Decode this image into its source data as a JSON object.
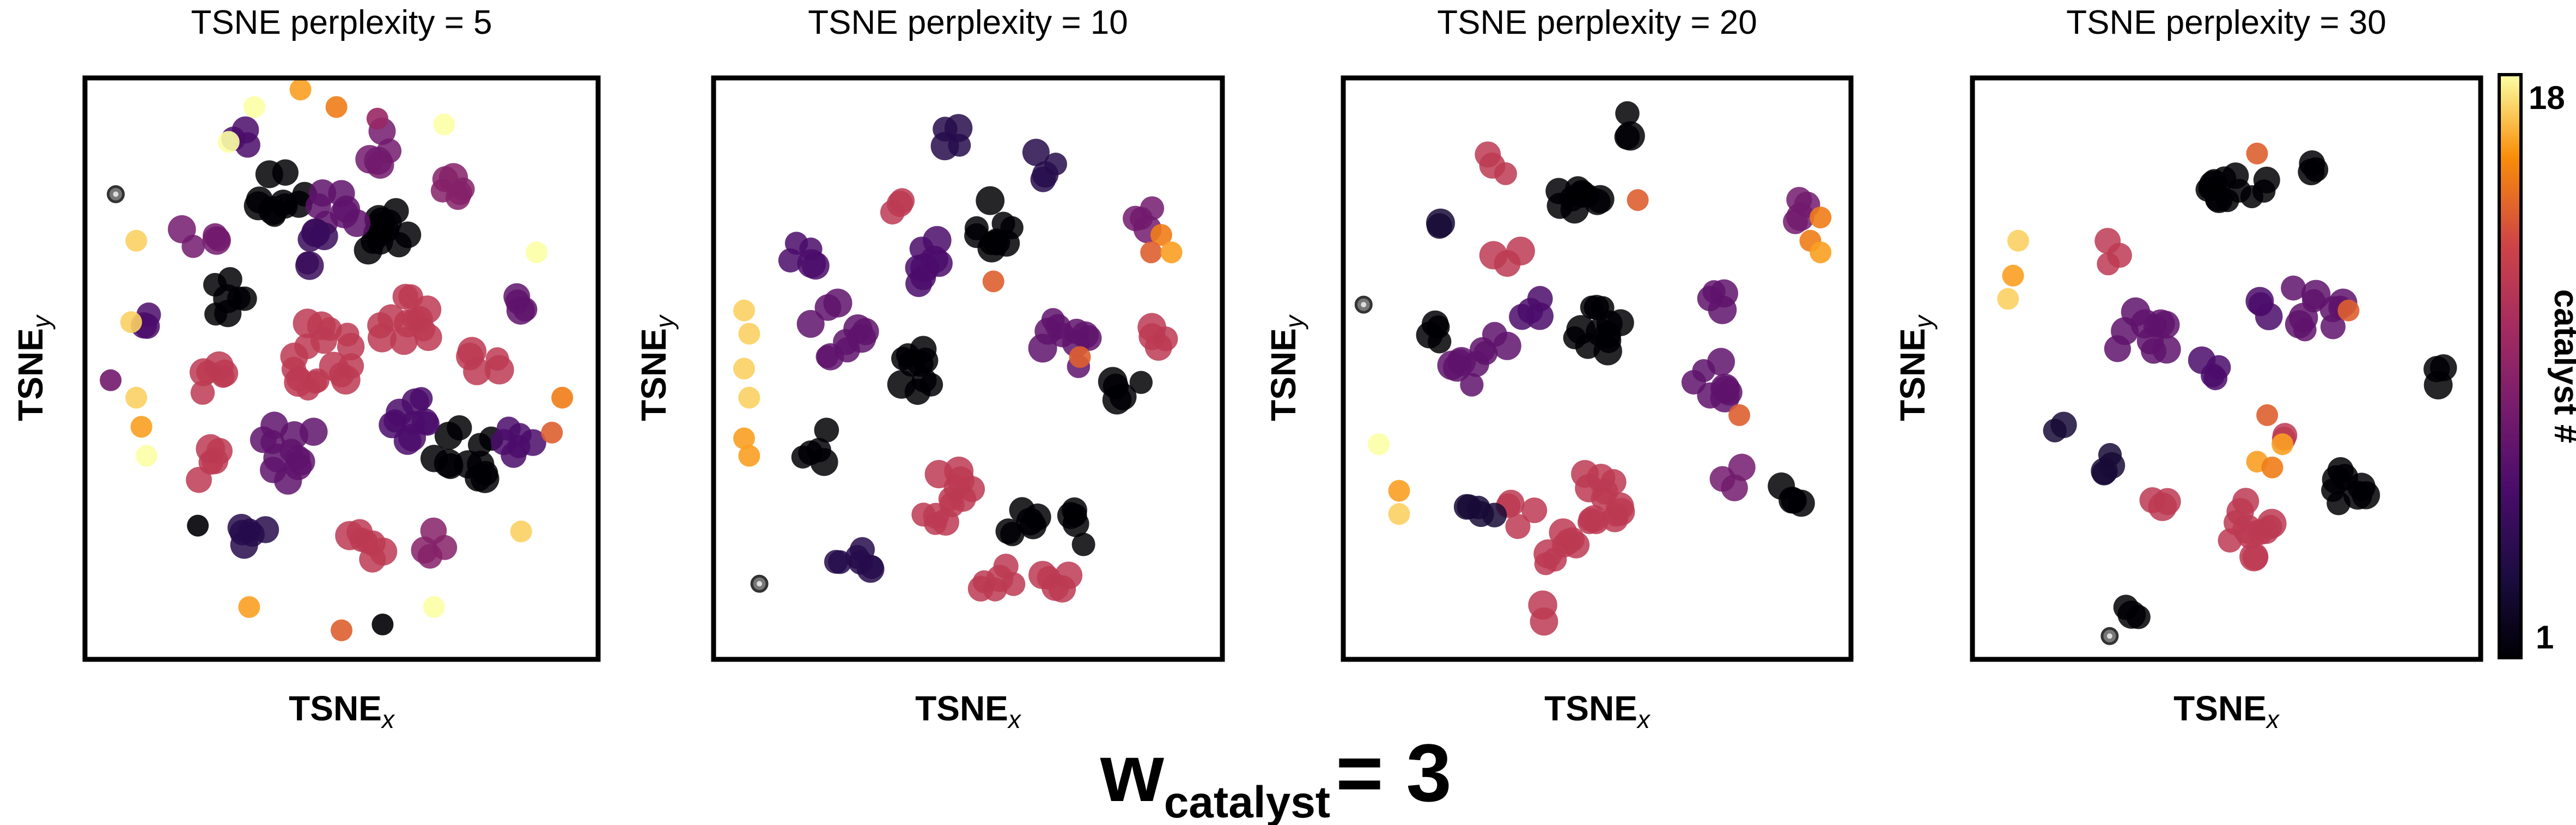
{
  "chart_data": {
    "suptitle": {
      "main": "w",
      "sub": "catalyst",
      "suffix": "= 3"
    },
    "colorbar": {
      "label": "catalyst #",
      "min": 1,
      "max": 18,
      "tick_labels": [
        "18",
        "1"
      ],
      "colormap": "inferno"
    },
    "colors": {
      "axes_frame": "#000000",
      "outlier_gray": "#777777"
    },
    "panels": [
      {
        "type": "scatter",
        "title": "TSNE perplexity = 5",
        "xlabel": "TSNE",
        "xlabel_sub": "x",
        "ylabel": "TSNE",
        "ylabel_sub": "y",
        "xlim": [
          0,
          100
        ],
        "ylim": [
          0,
          100
        ],
        "clusters": [
          {
            "x": 38,
            "y": 80,
            "c": 1,
            "n": 10,
            "s": 5
          },
          {
            "x": 60,
            "y": 72,
            "c": 1,
            "n": 12,
            "s": 6
          },
          {
            "x": 73,
            "y": 35,
            "c": 1,
            "n": 12,
            "s": 7
          },
          {
            "x": 28,
            "y": 62,
            "c": 1,
            "n": 7,
            "s": 4
          },
          {
            "x": 46,
            "y": 52,
            "c": 12,
            "n": 18,
            "s": 7
          },
          {
            "x": 62,
            "y": 58,
            "c": 12,
            "n": 12,
            "s": 6
          },
          {
            "x": 26,
            "y": 48,
            "c": 12,
            "n": 6,
            "s": 4
          },
          {
            "x": 24,
            "y": 33,
            "c": 12,
            "n": 5,
            "s": 4
          },
          {
            "x": 55,
            "y": 20,
            "c": 12,
            "n": 7,
            "s": 4
          },
          {
            "x": 78,
            "y": 52,
            "c": 12,
            "n": 5,
            "s": 4
          },
          {
            "x": 40,
            "y": 36,
            "c": 7,
            "n": 12,
            "s": 6
          },
          {
            "x": 62,
            "y": 42,
            "c": 6,
            "n": 10,
            "s": 6
          },
          {
            "x": 50,
            "y": 78,
            "c": 7,
            "n": 7,
            "s": 5
          },
          {
            "x": 70,
            "y": 82,
            "c": 9,
            "n": 6,
            "s": 4
          },
          {
            "x": 34,
            "y": 22,
            "c": 4,
            "n": 6,
            "s": 4
          },
          {
            "x": 84,
            "y": 38,
            "c": 6,
            "n": 6,
            "s": 4
          },
          {
            "x": 22,
            "y": 72,
            "c": 8,
            "n": 5,
            "s": 4
          },
          {
            "x": 45,
            "y": 70,
            "c": 5,
            "n": 6,
            "s": 4
          },
          {
            "x": 56,
            "y": 88,
            "c": 8,
            "n": 5,
            "s": 4
          },
          {
            "x": 84,
            "y": 62,
            "c": 7,
            "n": 4,
            "s": 3
          },
          {
            "x": 14,
            "y": 58,
            "c": 6,
            "n": 3,
            "s": 3
          },
          {
            "x": 68,
            "y": 20,
            "c": 9,
            "n": 4,
            "s": 3
          },
          {
            "x": 30,
            "y": 90,
            "c": 6,
            "n": 3,
            "s": 3
          }
        ],
        "points": [
          {
            "x": 42,
            "y": 98,
            "c": 16
          },
          {
            "x": 49,
            "y": 95,
            "c": 15
          },
          {
            "x": 33,
            "y": 95,
            "c": 18
          },
          {
            "x": 28,
            "y": 89,
            "c": 18
          },
          {
            "x": 57,
            "y": 93,
            "c": 10
          },
          {
            "x": 70,
            "y": 92,
            "c": 18
          },
          {
            "x": 10,
            "y": 72,
            "c": 17
          },
          {
            "x": 88,
            "y": 70,
            "c": 18
          },
          {
            "x": 9,
            "y": 58,
            "c": 17
          },
          {
            "x": 10,
            "y": 45,
            "c": 17
          },
          {
            "x": 11,
            "y": 40,
            "c": 16
          },
          {
            "x": 12,
            "y": 35,
            "c": 18
          },
          {
            "x": 93,
            "y": 45,
            "c": 15
          },
          {
            "x": 91,
            "y": 39,
            "c": 14
          },
          {
            "x": 5,
            "y": 48,
            "c": 8
          },
          {
            "x": 32,
            "y": 9,
            "c": 16
          },
          {
            "x": 50,
            "y": 5,
            "c": 14
          },
          {
            "x": 58,
            "y": 6,
            "c": 1
          },
          {
            "x": 68,
            "y": 9,
            "c": 18
          },
          {
            "x": 85,
            "y": 22,
            "c": 17
          },
          {
            "x": 22,
            "y": 23,
            "c": 1
          },
          {
            "x": 6,
            "y": 80,
            "c": 0,
            "ring": true
          }
        ]
      },
      {
        "type": "scatter",
        "title": "TSNE perplexity = 10",
        "xlabel": "TSNE",
        "xlabel_sub": "x",
        "ylabel": "TSNE",
        "ylabel_sub": "y",
        "xlim": [
          0,
          100
        ],
        "ylim": [
          0,
          100
        ],
        "clusters": [
          {
            "x": 40,
            "y": 50,
            "c": 1,
            "n": 10,
            "s": 5
          },
          {
            "x": 56,
            "y": 75,
            "c": 1,
            "n": 10,
            "s": 5
          },
          {
            "x": 60,
            "y": 24,
            "c": 1,
            "n": 6,
            "s": 4
          },
          {
            "x": 72,
            "y": 23,
            "c": 1,
            "n": 5,
            "s": 4
          },
          {
            "x": 82,
            "y": 47,
            "c": 1,
            "n": 5,
            "s": 4
          },
          {
            "x": 20,
            "y": 37,
            "c": 1,
            "n": 5,
            "s": 4
          },
          {
            "x": 45,
            "y": 28,
            "c": 12,
            "n": 12,
            "s": 6
          },
          {
            "x": 56,
            "y": 13,
            "c": 12,
            "n": 6,
            "s": 4
          },
          {
            "x": 66,
            "y": 14,
            "c": 12,
            "n": 5,
            "s": 4
          },
          {
            "x": 36,
            "y": 78,
            "c": 12,
            "n": 3,
            "s": 3
          },
          {
            "x": 88,
            "y": 56,
            "c": 12,
            "n": 4,
            "s": 3
          },
          {
            "x": 24,
            "y": 56,
            "c": 7,
            "n": 10,
            "s": 6
          },
          {
            "x": 70,
            "y": 55,
            "c": 7,
            "n": 10,
            "s": 6
          },
          {
            "x": 42,
            "y": 68,
            "c": 6,
            "n": 8,
            "s": 5
          },
          {
            "x": 28,
            "y": 17,
            "c": 4,
            "n": 7,
            "s": 4
          },
          {
            "x": 47,
            "y": 90,
            "c": 4,
            "n": 4,
            "s": 3
          },
          {
            "x": 65,
            "y": 85,
            "c": 4,
            "n": 4,
            "s": 3
          },
          {
            "x": 85,
            "y": 76,
            "c": 8,
            "n": 4,
            "s": 3
          },
          {
            "x": 18,
            "y": 70,
            "c": 6,
            "n": 5,
            "s": 4
          }
        ],
        "points": [
          {
            "x": 6,
            "y": 60,
            "c": 17
          },
          {
            "x": 7,
            "y": 56,
            "c": 17
          },
          {
            "x": 6,
            "y": 50,
            "c": 17
          },
          {
            "x": 7,
            "y": 45,
            "c": 17
          },
          {
            "x": 6,
            "y": 38,
            "c": 16
          },
          {
            "x": 7,
            "y": 35,
            "c": 16
          },
          {
            "x": 88,
            "y": 73,
            "c": 15
          },
          {
            "x": 86,
            "y": 70,
            "c": 14
          },
          {
            "x": 90,
            "y": 70,
            "c": 16
          },
          {
            "x": 55,
            "y": 65,
            "c": 14
          },
          {
            "x": 72,
            "y": 52,
            "c": 14
          },
          {
            "x": 9,
            "y": 13,
            "c": 0,
            "ring": true
          }
        ]
      },
      {
        "type": "scatter",
        "title": "TSNE perplexity = 20",
        "xlabel": "TSNE",
        "xlabel_sub": "x",
        "ylabel": "TSNE",
        "ylabel_sub": "y",
        "xlim": [
          0,
          100
        ],
        "ylim": [
          0,
          100
        ],
        "clusters": [
          {
            "x": 46,
            "y": 80,
            "c": 1,
            "n": 10,
            "s": 5
          },
          {
            "x": 50,
            "y": 57,
            "c": 1,
            "n": 12,
            "s": 5
          },
          {
            "x": 18,
            "y": 56,
            "c": 1,
            "n": 4,
            "s": 3
          },
          {
            "x": 88,
            "y": 28,
            "c": 1,
            "n": 4,
            "s": 3
          },
          {
            "x": 50,
            "y": 28,
            "c": 12,
            "n": 14,
            "s": 6
          },
          {
            "x": 42,
            "y": 20,
            "c": 12,
            "n": 8,
            "s": 5
          },
          {
            "x": 35,
            "y": 25,
            "c": 12,
            "n": 4,
            "s": 3
          },
          {
            "x": 30,
            "y": 85,
            "c": 12,
            "n": 3,
            "s": 3
          },
          {
            "x": 32,
            "y": 70,
            "c": 12,
            "n": 3,
            "s": 3
          },
          {
            "x": 40,
            "y": 8,
            "c": 12,
            "n": 2,
            "s": 2
          },
          {
            "x": 27,
            "y": 52,
            "c": 7,
            "n": 10,
            "s": 6
          },
          {
            "x": 74,
            "y": 48,
            "c": 7,
            "n": 8,
            "s": 5
          },
          {
            "x": 74,
            "y": 62,
            "c": 7,
            "n": 4,
            "s": 3
          },
          {
            "x": 90,
            "y": 77,
            "c": 8,
            "n": 4,
            "s": 3
          },
          {
            "x": 37,
            "y": 60,
            "c": 6,
            "n": 4,
            "s": 3
          },
          {
            "x": 28,
            "y": 25,
            "c": 3,
            "n": 5,
            "s": 4
          },
          {
            "x": 18,
            "y": 76,
            "c": 3,
            "n": 2,
            "s": 2
          },
          {
            "x": 56,
            "y": 92,
            "c": 1,
            "n": 3,
            "s": 3
          },
          {
            "x": 76,
            "y": 32,
            "c": 8,
            "n": 3,
            "s": 3
          }
        ],
        "points": [
          {
            "x": 7,
            "y": 37,
            "c": 18
          },
          {
            "x": 11,
            "y": 29,
            "c": 16
          },
          {
            "x": 11,
            "y": 25,
            "c": 17
          },
          {
            "x": 92,
            "y": 72,
            "c": 15
          },
          {
            "x": 94,
            "y": 76,
            "c": 15
          },
          {
            "x": 94,
            "y": 70,
            "c": 16
          },
          {
            "x": 58,
            "y": 79,
            "c": 14
          },
          {
            "x": 78,
            "y": 42,
            "c": 14
          },
          {
            "x": 4,
            "y": 61,
            "c": 0,
            "ring": true
          }
        ]
      },
      {
        "type": "scatter",
        "title": "TSNE perplexity = 30",
        "xlabel": "TSNE",
        "xlabel_sub": "x",
        "ylabel": "TSNE",
        "ylabel_sub": "y",
        "xlim": [
          0,
          100
        ],
        "ylim": [
          0,
          100
        ],
        "clusters": [
          {
            "x": 50,
            "y": 83,
            "c": 1,
            "n": 10,
            "s": 5
          },
          {
            "x": 75,
            "y": 30,
            "c": 1,
            "n": 8,
            "s": 5
          },
          {
            "x": 66,
            "y": 86,
            "c": 1,
            "n": 3,
            "s": 3
          },
          {
            "x": 93,
            "y": 48,
            "c": 1,
            "n": 3,
            "s": 3
          },
          {
            "x": 30,
            "y": 8,
            "c": 1,
            "n": 3,
            "s": 3
          },
          {
            "x": 56,
            "y": 82,
            "c": 1,
            "n": 3,
            "s": 3
          },
          {
            "x": 54,
            "y": 22,
            "c": 12,
            "n": 12,
            "s": 6
          },
          {
            "x": 28,
            "y": 70,
            "c": 12,
            "n": 3,
            "s": 3
          },
          {
            "x": 37,
            "y": 27,
            "c": 12,
            "n": 3,
            "s": 3
          },
          {
            "x": 62,
            "y": 37,
            "c": 12,
            "n": 2,
            "s": 2
          },
          {
            "x": 33,
            "y": 55,
            "c": 7,
            "n": 10,
            "s": 6
          },
          {
            "x": 67,
            "y": 61,
            "c": 7,
            "n": 10,
            "s": 6
          },
          {
            "x": 47,
            "y": 50,
            "c": 6,
            "n": 4,
            "s": 3
          },
          {
            "x": 27,
            "y": 33,
            "c": 3,
            "n": 4,
            "s": 3
          },
          {
            "x": 17,
            "y": 39,
            "c": 3,
            "n": 2,
            "s": 2
          },
          {
            "x": 56,
            "y": 60,
            "c": 6,
            "n": 3,
            "s": 3
          }
        ],
        "points": [
          {
            "x": 9,
            "y": 72,
            "c": 17
          },
          {
            "x": 8,
            "y": 66,
            "c": 16
          },
          {
            "x": 7,
            "y": 62,
            "c": 17
          },
          {
            "x": 56,
            "y": 34,
            "c": 16
          },
          {
            "x": 59,
            "y": 33,
            "c": 15
          },
          {
            "x": 61,
            "y": 37,
            "c": 16
          },
          {
            "x": 58,
            "y": 42,
            "c": 14
          },
          {
            "x": 56,
            "y": 87,
            "c": 14
          },
          {
            "x": 74,
            "y": 60,
            "c": 14
          },
          {
            "x": 27,
            "y": 4,
            "c": 0,
            "ring": true
          }
        ]
      }
    ]
  }
}
